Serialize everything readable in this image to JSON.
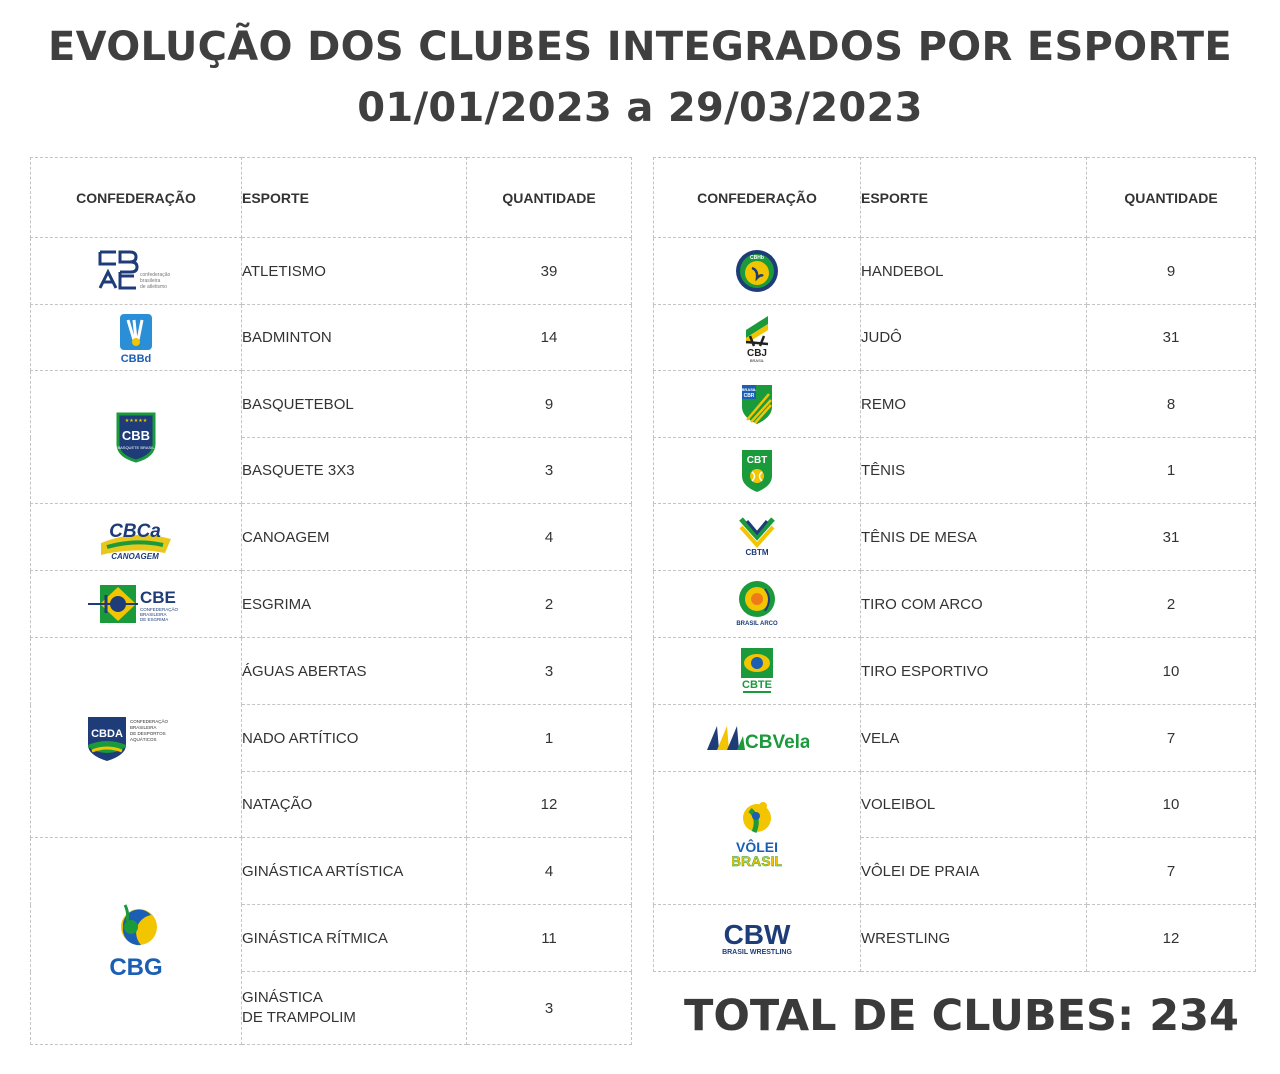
{
  "header": {
    "title_line1": "EVOLUÇÃO DOS CLUBES INTEGRADOS POR ESPORTE",
    "title_line2": "01/01/2023 a 29/03/2023"
  },
  "columns": {
    "confederacao": "CONFEDERAÇÃO",
    "esporte": "ESPORTE",
    "quantidade": "QUANTIDADE"
  },
  "left_rows": [
    {
      "esporte": "ATLETISMO",
      "quantidade": "39"
    },
    {
      "esporte": "BADMINTON",
      "quantidade": "14"
    },
    {
      "esporte": "BASQUETEBOL",
      "quantidade": "9"
    },
    {
      "esporte": "BASQUETE 3X3",
      "quantidade": "3"
    },
    {
      "esporte": "CANOAGEM",
      "quantidade": "4"
    },
    {
      "esporte": "ESGRIMA",
      "quantidade": "2"
    },
    {
      "esporte": "ÁGUAS ABERTAS",
      "quantidade": "3"
    },
    {
      "esporte": "NADO ARTÍTICO",
      "quantidade": "1"
    },
    {
      "esporte": "NATAÇÃO",
      "quantidade": "12"
    },
    {
      "esporte": "GINÁSTICA ARTÍSTICA",
      "quantidade": "4"
    },
    {
      "esporte": "GINÁSTICA RÍTMICA",
      "quantidade": "11"
    },
    {
      "esporte": "GINÁSTICA\nDE TRAMPOLIM",
      "quantidade": "3"
    }
  ],
  "right_rows": [
    {
      "esporte": "HANDEBOL",
      "quantidade": "9"
    },
    {
      "esporte": "JUDÔ",
      "quantidade": "31"
    },
    {
      "esporte": "REMO",
      "quantidade": "8"
    },
    {
      "esporte": "TÊNIS",
      "quantidade": "1"
    },
    {
      "esporte": "TÊNIS DE MESA",
      "quantidade": "31"
    },
    {
      "esporte": "TIRO COM ARCO",
      "quantidade": "2"
    },
    {
      "esporte": "TIRO ESPORTIVO",
      "quantidade": "10"
    },
    {
      "esporte": "VELA",
      "quantidade": "7"
    },
    {
      "esporte": "VOLEIBOL",
      "quantidade": "10"
    },
    {
      "esporte": "VÔLEI DE PRAIA",
      "quantidade": "7"
    },
    {
      "esporte": "WRESTLING",
      "quantidade": "12"
    }
  ],
  "logos": {
    "cbat": {
      "text": "CBAt",
      "sub": "confederação brasileira de atletismo",
      "icon": "cbat-logo"
    },
    "cbbd": {
      "text": "CBBd",
      "icon": "cbbd-logo"
    },
    "cbb": {
      "text": "CBB",
      "sub": "BASQUETE BRASIL",
      "icon": "cbb-logo"
    },
    "cbca": {
      "text": "CBCa",
      "sub": "CANOAGEM",
      "icon": "cbca-logo"
    },
    "cbe": {
      "text": "CBE",
      "sub": "CONFEDERAÇÃO BRASILEIRA DE ESGRIMA",
      "icon": "cbe-logo"
    },
    "cbda": {
      "text": "CBDA",
      "sub": "CONFEDERAÇÃO BRASILEIRA DE DESPORTOS AQUÁTICOS",
      "icon": "cbda-logo"
    },
    "cbg": {
      "text": "CBG",
      "icon": "cbg-logo"
    },
    "cbhb": {
      "text": "CBHb",
      "icon": "cbhb-logo"
    },
    "cbj": {
      "text": "CBJ",
      "sub": "BRASIL",
      "icon": "cbj-logo"
    },
    "cbr": {
      "text": "CBR",
      "sub": "BRASIL",
      "icon": "cbr-logo"
    },
    "cbt": {
      "text": "CBT",
      "icon": "cbt-logo"
    },
    "cbtm": {
      "text": "CBTM",
      "icon": "cbtm-logo"
    },
    "brasilarco": {
      "text": "BRASIL ARCO",
      "icon": "brasil-arco-logo"
    },
    "cbte": {
      "text": "CBTE",
      "icon": "cbte-logo"
    },
    "cbvela": {
      "text": "CBVela",
      "icon": "cbvela-logo"
    },
    "voleibrasil": {
      "text": "VÔLEI",
      "sub": "BRASIL",
      "icon": "volei-brasil-logo"
    },
    "cbw": {
      "text": "CBW",
      "sub": "BRASIL WRESTLING",
      "icon": "cbw-logo"
    }
  },
  "colors": {
    "navy": "#1d3c78",
    "green": "#1b9a3c",
    "yellow": "#f2c500",
    "blue": "#1a5fb4"
  },
  "footer": {
    "total_label": "TOTAL DE CLUBES:",
    "total_value": "234"
  }
}
